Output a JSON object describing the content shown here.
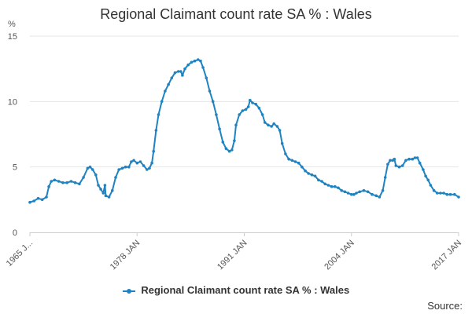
{
  "chart_data": {
    "type": "line",
    "title": "Regional Claimant count rate SA % : Wales",
    "ylabel": "%",
    "xlabel": "",
    "ylim": [
      0,
      15
    ],
    "y_ticks": [
      0,
      5,
      10,
      15
    ],
    "x_range": [
      1965.0,
      2017.0
    ],
    "x_ticks": [
      {
        "x": 1965.0,
        "label": "1965 J..."
      },
      {
        "x": 1978.0,
        "label": "1978 JAN"
      },
      {
        "x": 1991.0,
        "label": "1991 JAN"
      },
      {
        "x": 2004.0,
        "label": "2004 JAN"
      },
      {
        "x": 2017.0,
        "label": "2017 JAN"
      }
    ],
    "grid": true,
    "legend": "bottom",
    "series": [
      {
        "name": "Regional Claimant count rate SA % : Wales",
        "color": "#1f83c1",
        "points": [
          [
            1965.0,
            2.3
          ],
          [
            1965.5,
            2.4
          ],
          [
            1966.0,
            2.6
          ],
          [
            1966.5,
            2.5
          ],
          [
            1967.0,
            2.7
          ],
          [
            1967.3,
            3.5
          ],
          [
            1967.6,
            3.9
          ],
          [
            1968.0,
            4.0
          ],
          [
            1968.5,
            3.9
          ],
          [
            1969.0,
            3.8
          ],
          [
            1969.5,
            3.8
          ],
          [
            1970.0,
            3.9
          ],
          [
            1970.5,
            3.8
          ],
          [
            1971.0,
            3.7
          ],
          [
            1971.5,
            4.2
          ],
          [
            1972.0,
            4.9
          ],
          [
            1972.3,
            5.0
          ],
          [
            1972.6,
            4.8
          ],
          [
            1973.0,
            4.4
          ],
          [
            1973.3,
            3.6
          ],
          [
            1973.6,
            3.3
          ],
          [
            1973.9,
            3.0
          ],
          [
            1974.1,
            3.6
          ],
          [
            1974.2,
            2.8
          ],
          [
            1974.6,
            2.7
          ],
          [
            1975.0,
            3.2
          ],
          [
            1975.4,
            4.2
          ],
          [
            1975.8,
            4.8
          ],
          [
            1976.2,
            4.9
          ],
          [
            1976.6,
            5.0
          ],
          [
            1977.0,
            5.0
          ],
          [
            1977.3,
            5.4
          ],
          [
            1977.6,
            5.5
          ],
          [
            1978.0,
            5.3
          ],
          [
            1978.4,
            5.4
          ],
          [
            1978.8,
            5.1
          ],
          [
            1979.2,
            4.8
          ],
          [
            1979.5,
            4.9
          ],
          [
            1979.8,
            5.3
          ],
          [
            1980.0,
            6.2
          ],
          [
            1980.3,
            7.8
          ],
          [
            1980.6,
            9.0
          ],
          [
            1981.0,
            10.0
          ],
          [
            1981.4,
            10.8
          ],
          [
            1981.8,
            11.3
          ],
          [
            1982.2,
            11.8
          ],
          [
            1982.6,
            12.2
          ],
          [
            1983.0,
            12.3
          ],
          [
            1983.3,
            12.3
          ],
          [
            1983.5,
            12.0
          ],
          [
            1983.8,
            12.5
          ],
          [
            1984.2,
            12.8
          ],
          [
            1984.6,
            13.0
          ],
          [
            1985.0,
            13.1
          ],
          [
            1985.4,
            13.2
          ],
          [
            1985.7,
            13.1
          ],
          [
            1986.0,
            12.6
          ],
          [
            1986.4,
            11.8
          ],
          [
            1986.8,
            10.8
          ],
          [
            1987.2,
            10.0
          ],
          [
            1987.6,
            9.0
          ],
          [
            1988.0,
            7.9
          ],
          [
            1988.4,
            6.9
          ],
          [
            1988.8,
            6.4
          ],
          [
            1989.2,
            6.2
          ],
          [
            1989.5,
            6.3
          ],
          [
            1989.8,
            7.0
          ],
          [
            1990.0,
            8.2
          ],
          [
            1990.4,
            9.0
          ],
          [
            1990.8,
            9.3
          ],
          [
            1991.2,
            9.4
          ],
          [
            1991.5,
            9.6
          ],
          [
            1991.7,
            10.1
          ],
          [
            1992.0,
            9.9
          ],
          [
            1992.4,
            9.8
          ],
          [
            1992.8,
            9.5
          ],
          [
            1993.2,
            9.0
          ],
          [
            1993.5,
            8.4
          ],
          [
            1993.9,
            8.2
          ],
          [
            1994.3,
            8.1
          ],
          [
            1994.6,
            8.3
          ],
          [
            1995.0,
            8.1
          ],
          [
            1995.3,
            7.8
          ],
          [
            1995.6,
            6.8
          ],
          [
            1996.0,
            6.0
          ],
          [
            1996.4,
            5.6
          ],
          [
            1996.8,
            5.5
          ],
          [
            1997.2,
            5.4
          ],
          [
            1997.6,
            5.3
          ],
          [
            1998.0,
            5.0
          ],
          [
            1998.4,
            4.7
          ],
          [
            1998.8,
            4.5
          ],
          [
            1999.2,
            4.4
          ],
          [
            1999.6,
            4.3
          ],
          [
            2000.0,
            4.0
          ],
          [
            2000.4,
            3.9
          ],
          [
            2000.8,
            3.7
          ],
          [
            2001.2,
            3.6
          ],
          [
            2001.6,
            3.5
          ],
          [
            2002.0,
            3.5
          ],
          [
            2002.4,
            3.4
          ],
          [
            2002.8,
            3.2
          ],
          [
            2003.2,
            3.1
          ],
          [
            2003.6,
            3.0
          ],
          [
            2004.0,
            2.9
          ],
          [
            2004.3,
            2.9
          ],
          [
            2004.6,
            3.0
          ],
          [
            2005.0,
            3.1
          ],
          [
            2005.5,
            3.2
          ],
          [
            2006.0,
            3.1
          ],
          [
            2006.5,
            2.9
          ],
          [
            2007.0,
            2.8
          ],
          [
            2007.4,
            2.7
          ],
          [
            2007.8,
            3.2
          ],
          [
            2008.1,
            4.2
          ],
          [
            2008.4,
            5.2
          ],
          [
            2008.7,
            5.5
          ],
          [
            2009.0,
            5.5
          ],
          [
            2009.2,
            5.6
          ],
          [
            2009.4,
            5.1
          ],
          [
            2009.8,
            5.0
          ],
          [
            2010.2,
            5.1
          ],
          [
            2010.6,
            5.5
          ],
          [
            2011.0,
            5.6
          ],
          [
            2011.4,
            5.6
          ],
          [
            2011.7,
            5.7
          ],
          [
            2012.0,
            5.7
          ],
          [
            2012.3,
            5.3
          ],
          [
            2012.7,
            4.8
          ],
          [
            2013.0,
            4.3
          ],
          [
            2013.3,
            4.0
          ],
          [
            2013.6,
            3.6
          ],
          [
            2014.0,
            3.2
          ],
          [
            2014.4,
            3.0
          ],
          [
            2014.8,
            3.0
          ],
          [
            2015.2,
            3.0
          ],
          [
            2015.6,
            2.9
          ],
          [
            2016.0,
            2.9
          ],
          [
            2016.5,
            2.9
          ],
          [
            2017.0,
            2.7
          ]
        ]
      }
    ]
  },
  "legend_label": "Regional Claimant count rate SA % : Wales",
  "source_label": "Source:"
}
